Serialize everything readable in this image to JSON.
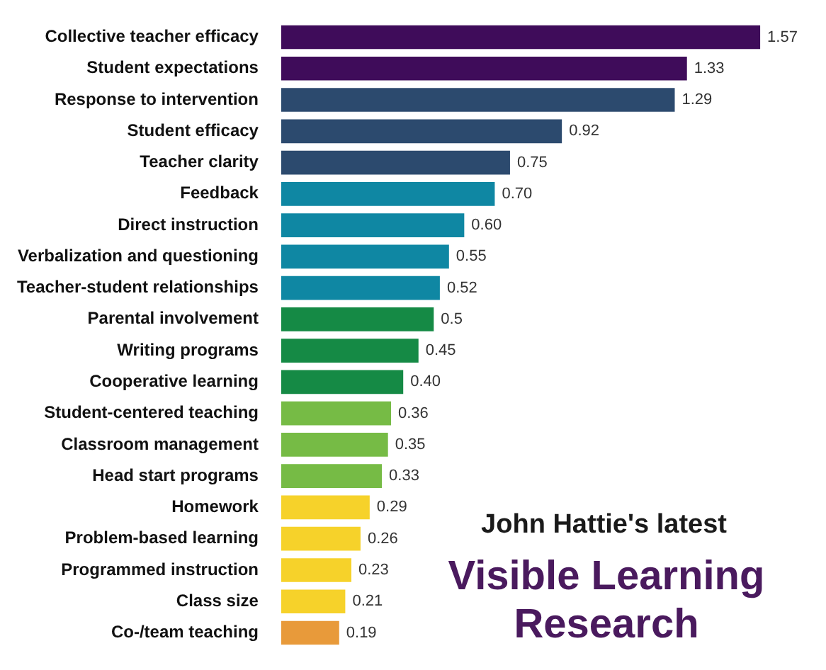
{
  "chart_data": {
    "type": "bar",
    "orientation": "horizontal",
    "subtitle": "John Hattie's latest",
    "title": "Visible Learning Research",
    "categories": [
      "Collective teacher efficacy",
      "Student expectations",
      "Response to intervention",
      "Student efficacy",
      "Teacher clarity",
      "Feedback",
      "Direct instruction",
      "Verbalization and questioning",
      "Teacher-student relationships",
      "Parental involvement",
      "Writing programs",
      "Cooperative learning",
      "Student-centered teaching",
      "Classroom management",
      "Head start programs",
      "Homework",
      "Problem-based learning",
      "Programmed instruction",
      "Class size",
      "Co-/team teaching"
    ],
    "values": [
      1.57,
      1.33,
      1.29,
      0.92,
      0.75,
      0.7,
      0.6,
      0.55,
      0.52,
      0.5,
      0.45,
      0.4,
      0.36,
      0.35,
      0.33,
      0.29,
      0.26,
      0.23,
      0.21,
      0.19
    ],
    "value_labels": [
      "1.57",
      "1.33",
      "1.29",
      "0.92",
      "0.75",
      "0.70",
      "0.60",
      "0.55",
      "0.52",
      "0.5",
      "0.45",
      "0.40",
      "0.36",
      "0.35",
      "0.33",
      "0.29",
      "0.26",
      "0.23",
      "0.21",
      "0.19"
    ],
    "colors": [
      "#3f0c5a",
      "#3f0c5a",
      "#2c4a6e",
      "#2c4a6e",
      "#2c4a6e",
      "#0f87a3",
      "#0f87a3",
      "#0f87a3",
      "#0f87a3",
      "#158a45",
      "#158a45",
      "#158a45",
      "#76bb45",
      "#76bb45",
      "#76bb45",
      "#f6d22a",
      "#f6d22a",
      "#f6d22a",
      "#f6d22a",
      "#e89a3a"
    ],
    "tick_labels": "y"
  }
}
